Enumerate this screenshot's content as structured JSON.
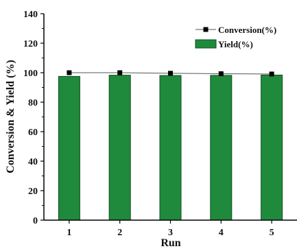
{
  "chart_data": {
    "type": "bar",
    "categories": [
      "1",
      "2",
      "3",
      "4",
      "5"
    ],
    "series": [
      {
        "name": "Yield(%)",
        "kind": "bar",
        "values": [
          97.5,
          98.3,
          98.1,
          98.2,
          98.4
        ],
        "color": "#1f8a3c"
      },
      {
        "name": "Conversion(%)",
        "kind": "line",
        "marker": "square",
        "values": [
          100,
          100,
          99.6,
          99.3,
          99.1
        ],
        "color": "#000000"
      }
    ],
    "xlabel": "Run",
    "ylabel": "Conversion & Yield (%)",
    "ylim": [
      0,
      140
    ],
    "yticks": [
      "0",
      "20",
      "40",
      "60",
      "80",
      "100",
      "120",
      "140"
    ],
    "grid": false,
    "legend": "top-right"
  }
}
